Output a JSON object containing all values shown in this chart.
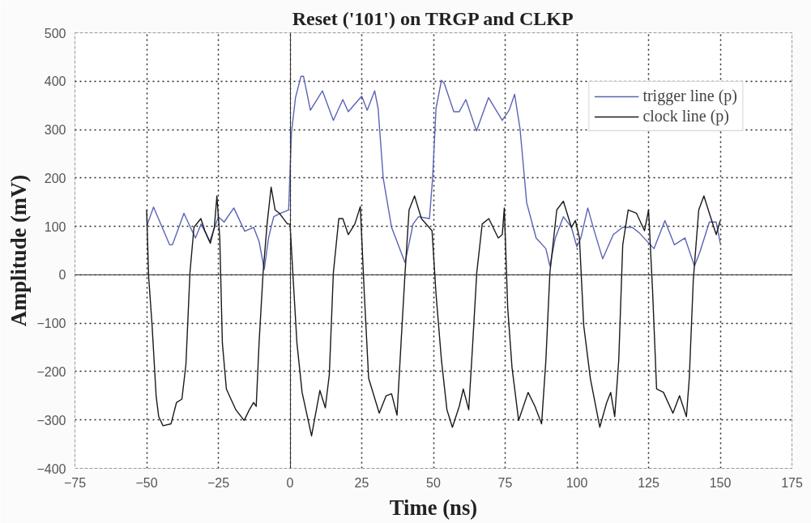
{
  "chart_data": {
    "type": "line",
    "title": "Reset ('101') on TRGP and CLKP",
    "xlabel": "Time (ns)",
    "ylabel": "Amplitude (mV)",
    "xlim": [
      -75,
      175
    ],
    "xticks": [
      -75,
      -50,
      -25,
      0,
      25,
      50,
      75,
      100,
      125,
      150,
      175
    ],
    "ylim": [
      -400,
      500
    ],
    "yticks": [
      -400,
      -300,
      -200,
      -100,
      0,
      100,
      200,
      300,
      400,
      500
    ],
    "grid": true,
    "legend": "top right",
    "marker": "none",
    "line_style": "solid",
    "series": [
      {
        "name": "trigger line (p)",
        "color": "#5a64b4",
        "x": [
          -50,
          -47.6,
          -42,
          -41,
          -37,
          -33,
          -31,
          -28,
          -25,
          -23,
          -19.6,
          -15.8,
          -12.7,
          -10.8,
          -9,
          -7.5,
          -5.7,
          -3.3,
          -0.5,
          0.5,
          1.9,
          3.8,
          4.7,
          7.1,
          11.3,
          15.1,
          18.4,
          20.3,
          25,
          26.9,
          29.5,
          30.7,
          32.5,
          35.4,
          40.1,
          42.9,
          44.8,
          48.6,
          49.7,
          50.9,
          52.8,
          53.8,
          57.1,
          59,
          61.3,
          65,
          69.2,
          74,
          76.4,
          78.3,
          80.2,
          82.5,
          85.8,
          89.2,
          90.6,
          92.5,
          95.3,
          98.1,
          100,
          101.4,
          103.8,
          106.1,
          109,
          112.7,
          116,
          119.3,
          121.7,
          124.5,
          126.9,
          130.7,
          134,
          137.7,
          141,
          142.9,
          146.2,
          148.6,
          150
        ],
        "values": [
          100,
          140,
          62,
          62,
          127,
          76,
          105,
          69,
          120,
          109,
          138,
          90,
          98,
          69,
          11,
          76,
          120,
          127,
          134,
          294,
          366,
          410,
          410,
          340,
          380,
          319,
          362,
          337,
          369,
          340,
          380,
          344,
          199,
          98,
          25,
          105,
          120,
          116,
          199,
          344,
          402,
          395,
          337,
          337,
          362,
          297,
          366,
          319,
          340,
          373,
          301,
          149,
          76,
          54,
          18,
          76,
          120,
          98,
          58,
          76,
          138,
          90,
          33,
          83,
          98,
          98,
          87,
          69,
          54,
          112,
          62,
          76,
          18,
          47,
          109,
          109,
          65
        ]
      },
      {
        "name": "clock line (p)",
        "color": "#1a1a1a",
        "x": [
          -50,
          -49.3,
          -48.1,
          -46.7,
          -45.8,
          -44.3,
          -41.5,
          -39.6,
          -37.7,
          -36.3,
          -34.9,
          -33.5,
          -31.1,
          -29.7,
          -27.8,
          -26.4,
          -25.5,
          -24.5,
          -23.6,
          -22.2,
          -18.9,
          -16,
          -14.2,
          -12.7,
          -11.8,
          -10.8,
          -9.4,
          -8,
          -6.6,
          -5.2,
          -3.7,
          -2.3,
          -0.9,
          0,
          0.9,
          2.4,
          4.2,
          7.5,
          10.4,
          12.3,
          13.7,
          15.1,
          17,
          18.4,
          20.3,
          22.6,
          24.5,
          25.9,
          27.4,
          31.1,
          33.5,
          35.4,
          37.3,
          38.7,
          40.1,
          41.5,
          43.4,
          45.8,
          49.5,
          50.9,
          52.8,
          54.7,
          56.6,
          59,
          60.4,
          62.3,
          63.7,
          65.1,
          67,
          69.3,
          72.6,
          74,
          74.7,
          75.9,
          77.4,
          79.7,
          83,
          85.4,
          87.7,
          89.2,
          90.6,
          93,
          95.3,
          98.1,
          99.5,
          100.9,
          102.4,
          104.7,
          108,
          110.4,
          111.8,
          113.2,
          114.6,
          116,
          117.9,
          120.8,
          123.6,
          125,
          126.4,
          127.8,
          130.2,
          133.5,
          135.8,
          138.2,
          139.2,
          140.6,
          142.5,
          144.3,
          146.2,
          148.6,
          150
        ],
        "values": [
          134,
          -4,
          -105,
          -250,
          -293,
          -312,
          -308,
          -264,
          -257,
          -185,
          4,
          98,
          116,
          91,
          65,
          98,
          163,
          76,
          -141,
          -236,
          -279,
          -301,
          -279,
          -264,
          -272,
          -141,
          4,
          105,
          181,
          134,
          127,
          116,
          105,
          105,
          11,
          -141,
          -243,
          -333,
          -239,
          -275,
          -206,
          4,
          116,
          116,
          83,
          105,
          141,
          -40,
          -214,
          -286,
          -250,
          -246,
          -290,
          -141,
          4,
          134,
          163,
          116,
          91,
          -40,
          -177,
          -279,
          -315,
          -272,
          -236,
          -279,
          -141,
          4,
          105,
          116,
          76,
          83,
          138,
          -69,
          -192,
          -301,
          -243,
          -272,
          -308,
          -177,
          4,
          134,
          152,
          98,
          112,
          76,
          -105,
          -214,
          -315,
          -264,
          -243,
          -293,
          -177,
          62,
          134,
          127,
          91,
          134,
          -33,
          -236,
          -243,
          -286,
          -250,
          -293,
          -214,
          -11,
          134,
          163,
          127,
          83,
          112
        ]
      }
    ]
  }
}
